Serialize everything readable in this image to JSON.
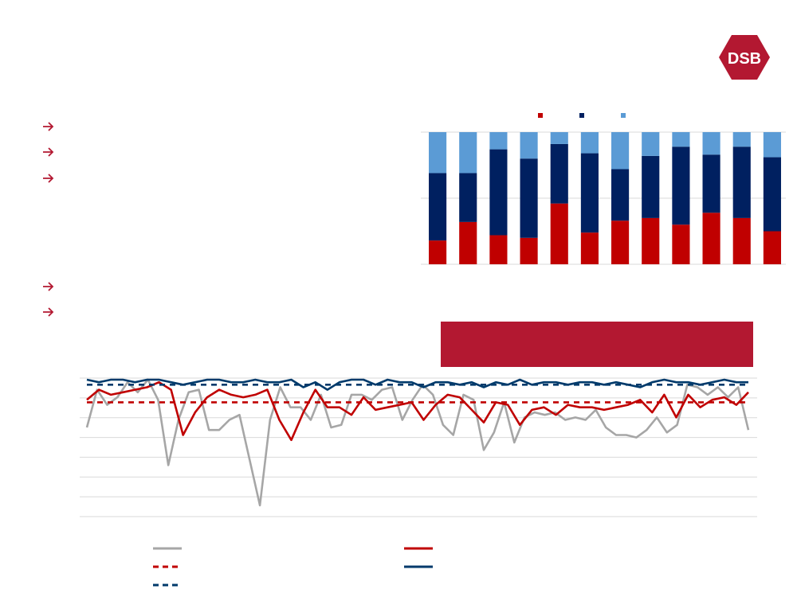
{
  "brand": {
    "logo_text": "DSB",
    "logo_color": "#b31831"
  },
  "bullets": [
    {
      "icon": "arrow-right-icon",
      "text": ""
    },
    {
      "icon": "arrow-right-icon",
      "text": ""
    },
    {
      "icon": "arrow-right-icon",
      "text": ""
    },
    {
      "icon": "arrow-right-icon",
      "text": ""
    },
    {
      "icon": "arrow-right-icon",
      "text": ""
    }
  ],
  "colors": {
    "accent": "#b31831",
    "red": "#c00000",
    "navy": "#002060",
    "lightblue": "#5b9bd5",
    "gray": "#a6a6a6",
    "line_navy": "#003a6b"
  },
  "chart_data": [
    {
      "type": "bar",
      "stacked": true,
      "normalized": true,
      "categories": [
        "",
        "",
        "",
        "",
        "",
        "",
        "",
        "",
        "",
        "",
        "",
        ""
      ],
      "ylim": [
        0,
        100
      ],
      "grid": true,
      "legend_position": "top",
      "series": [
        {
          "color": "#c00000",
          "values": [
            18,
            32,
            22,
            20,
            46,
            24,
            33,
            35,
            30,
            39,
            35,
            25
          ]
        },
        {
          "color": "#002060",
          "values": [
            51,
            37,
            65,
            60,
            45,
            60,
            39,
            47,
            59,
            44,
            54,
            56
          ]
        },
        {
          "color": "#5b9bd5",
          "values": [
            31,
            31,
            13,
            20,
            9,
            16,
            28,
            18,
            11,
            17,
            11,
            19
          ]
        }
      ]
    },
    {
      "type": "line",
      "ylim": [
        0,
        100
      ],
      "grid": true,
      "legend_position": "bottom",
      "series": [
        {
          "color": "#a6a6a6",
          "dashed": false,
          "values": [
            81,
            96,
            90,
            93,
            99,
            95,
            100,
            92,
            66,
            84,
            95,
            96,
            80,
            80,
            84,
            86,
            68,
            50,
            84,
            97,
            89,
            89,
            84,
            94,
            81,
            82,
            94,
            94,
            92,
            96,
            97,
            84,
            92,
            98,
            94,
            82,
            78,
            94,
            92,
            72,
            79,
            91,
            75,
            85,
            87,
            86,
            87,
            84,
            85,
            84,
            88,
            81,
            78,
            78,
            77,
            80,
            85,
            79,
            82,
            98,
            97,
            94,
            97,
            93,
            97,
            80
          ]
        },
        {
          "color": "#c00000",
          "dashed": false,
          "values": [
            92,
            96,
            94,
            95,
            96,
            97,
            99,
            96,
            78,
            87,
            93,
            96,
            94,
            93,
            94,
            96,
            84,
            76,
            87,
            96,
            89,
            89,
            86,
            93,
            88,
            89,
            90,
            91,
            84,
            90,
            94,
            93,
            88,
            83,
            91,
            90,
            82,
            88,
            89,
            86,
            90,
            89,
            89,
            88,
            89,
            90,
            92,
            87,
            94,
            85,
            94,
            89,
            92,
            93,
            90,
            95
          ]
        },
        {
          "color": "#c00000",
          "dashed": true,
          "values": [
            91,
            91,
            91,
            91,
            91,
            91,
            91,
            91,
            91,
            91,
            91,
            91,
            91,
            91,
            91,
            91,
            91,
            91,
            91,
            91,
            91,
            91,
            91,
            91,
            91,
            91,
            91,
            91,
            91,
            91,
            91,
            91,
            91,
            91,
            91,
            91,
            91,
            91,
            91,
            91,
            91,
            91,
            91,
            91,
            91,
            91,
            91,
            91,
            91,
            91,
            91,
            91,
            91,
            91,
            91,
            91
          ]
        },
        {
          "color": "#003a6b",
          "dashed": false,
          "values": [
            100,
            99,
            100,
            100,
            99,
            100,
            100,
            99,
            98,
            99,
            100,
            100,
            99,
            99,
            100,
            99,
            99,
            100,
            97,
            99,
            96,
            99,
            100,
            100,
            98,
            100,
            99,
            99,
            97,
            99,
            99,
            98,
            99,
            97,
            99,
            98,
            100,
            98,
            99,
            99,
            98,
            99,
            99,
            98,
            99,
            98,
            97,
            99,
            100,
            99,
            99,
            98,
            99,
            100,
            99,
            99
          ]
        },
        {
          "color": "#003a6b",
          "dashed": true,
          "values": [
            98,
            98,
            98,
            98,
            98,
            98,
            98,
            98,
            98,
            98,
            98,
            98,
            98,
            98,
            98,
            98,
            98,
            98,
            98,
            98,
            98,
            98,
            98,
            98,
            98,
            98,
            98,
            98,
            98,
            98,
            98,
            98,
            98,
            98,
            98,
            98,
            98,
            98,
            98,
            98,
            98,
            98,
            98,
            98,
            98,
            98,
            98,
            98,
            98,
            98,
            98,
            98,
            98,
            98,
            98,
            98
          ]
        }
      ]
    }
  ]
}
